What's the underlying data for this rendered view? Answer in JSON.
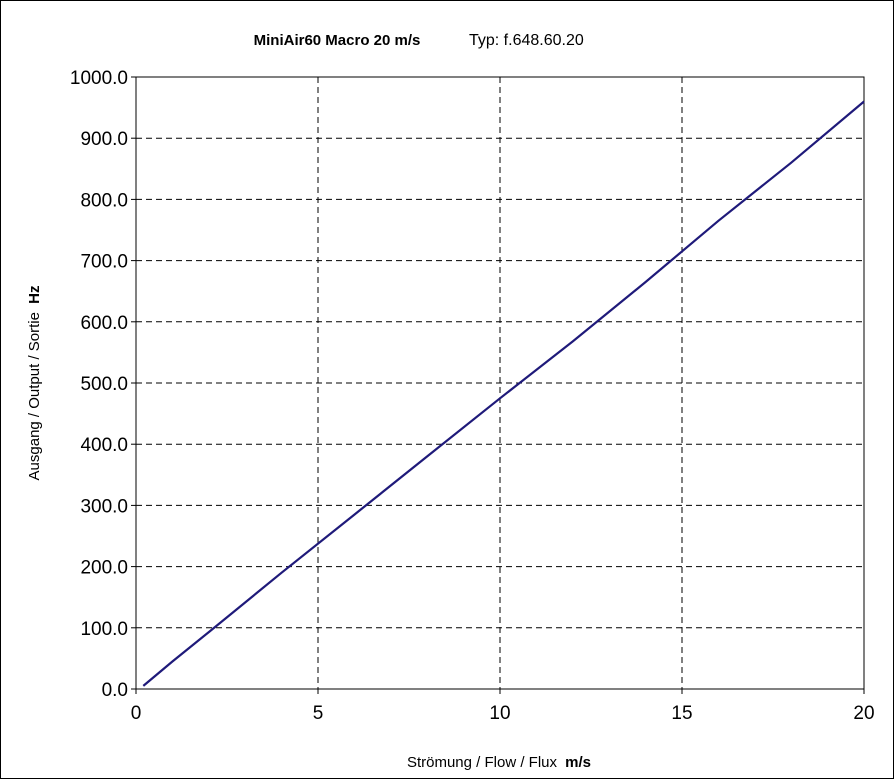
{
  "chart_data": {
    "type": "line",
    "title": "MiniAir60 Macro 20 m/s",
    "subtitle": "Typ: f.648.60.20",
    "xlabel": "Strömung / Flow / Flux",
    "xlabel_unit": "m/s",
    "ylabel": "Ausgang / Output / Sortie",
    "ylabel_unit": "Hz",
    "xlim": [
      0,
      20
    ],
    "ylim": [
      0,
      1000
    ],
    "x_ticks": [
      "0",
      "5",
      "10",
      "15",
      "20"
    ],
    "y_ticks": [
      "0.0",
      "100.0",
      "200.0",
      "300.0",
      "400.0",
      "500.0",
      "600.0",
      "700.0",
      "800.0",
      "900.0",
      "1000.0"
    ],
    "grid": true,
    "legend": "none",
    "series": [
      {
        "color": "#1f1a7a",
        "x": [
          0.2,
          1,
          2,
          4,
          6,
          8,
          10,
          12,
          14,
          16,
          18,
          20
        ],
        "y": [
          5,
          45,
          93,
          190,
          285,
          380,
          475,
          568,
          665,
          765,
          860,
          960
        ]
      }
    ]
  }
}
